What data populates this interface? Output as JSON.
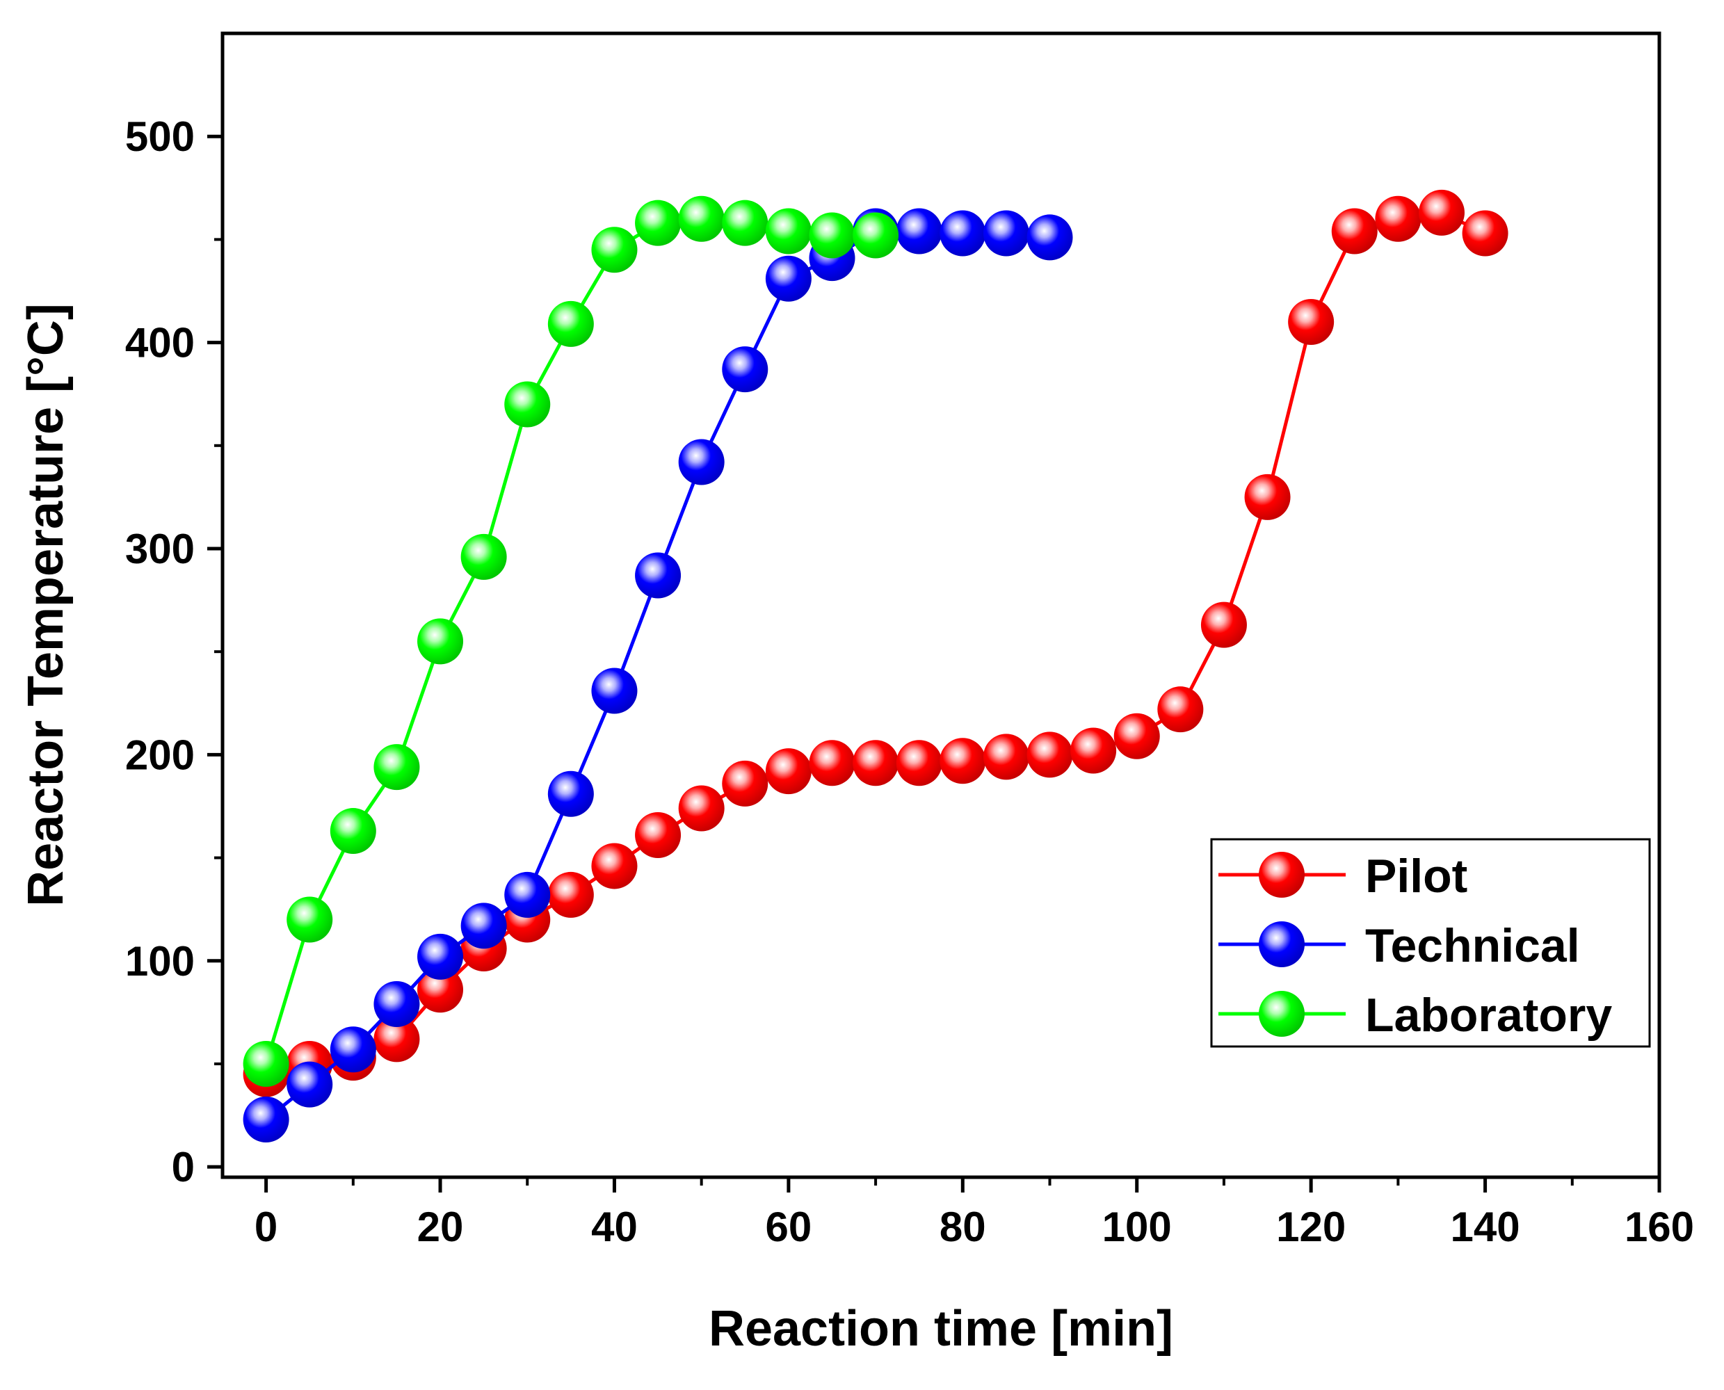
{
  "chart_data": {
    "type": "line",
    "title": "",
    "xlabel": "Reaction time [min]",
    "ylabel": "Reactor Temperature [°C]",
    "xlim": [
      -5,
      160
    ],
    "ylim": [
      -5,
      550
    ],
    "x_ticks": [
      0,
      20,
      40,
      60,
      80,
      100,
      120,
      140,
      160
    ],
    "y_ticks": [
      0,
      100,
      200,
      300,
      400,
      500
    ],
    "legend_position": "lower-right",
    "series": [
      {
        "name": "Pilot",
        "color": "#ff0000",
        "x": [
          0,
          5,
          10,
          15,
          20,
          25,
          30,
          35,
          40,
          45,
          50,
          55,
          60,
          65,
          70,
          75,
          80,
          85,
          90,
          95,
          100,
          105,
          110,
          115,
          120,
          125,
          130,
          135,
          140
        ],
        "y": [
          45,
          50,
          53,
          62,
          86,
          106,
          120,
          132,
          146,
          161,
          174,
          186,
          192,
          196,
          196,
          196,
          197,
          199,
          200,
          202,
          209,
          222,
          263,
          325,
          410,
          454,
          460,
          463,
          453
        ]
      },
      {
        "name": "Technical",
        "color": "#0000ff",
        "x": [
          0,
          5,
          10,
          15,
          20,
          25,
          30,
          35,
          40,
          45,
          50,
          55,
          60,
          65,
          70,
          75,
          80,
          85,
          90
        ],
        "y": [
          23,
          40,
          57,
          79,
          102,
          117,
          132,
          181,
          231,
          287,
          342,
          387,
          431,
          441,
          454,
          454,
          453,
          453,
          451
        ]
      },
      {
        "name": "Laboratory",
        "color": "#00ff00",
        "x": [
          0,
          5,
          10,
          15,
          20,
          25,
          30,
          35,
          40,
          45,
          50,
          55,
          60,
          65,
          70
        ],
        "y": [
          50,
          120,
          163,
          194,
          255,
          296,
          370,
          409,
          445,
          458,
          460,
          458,
          454,
          452,
          452
        ]
      }
    ]
  }
}
